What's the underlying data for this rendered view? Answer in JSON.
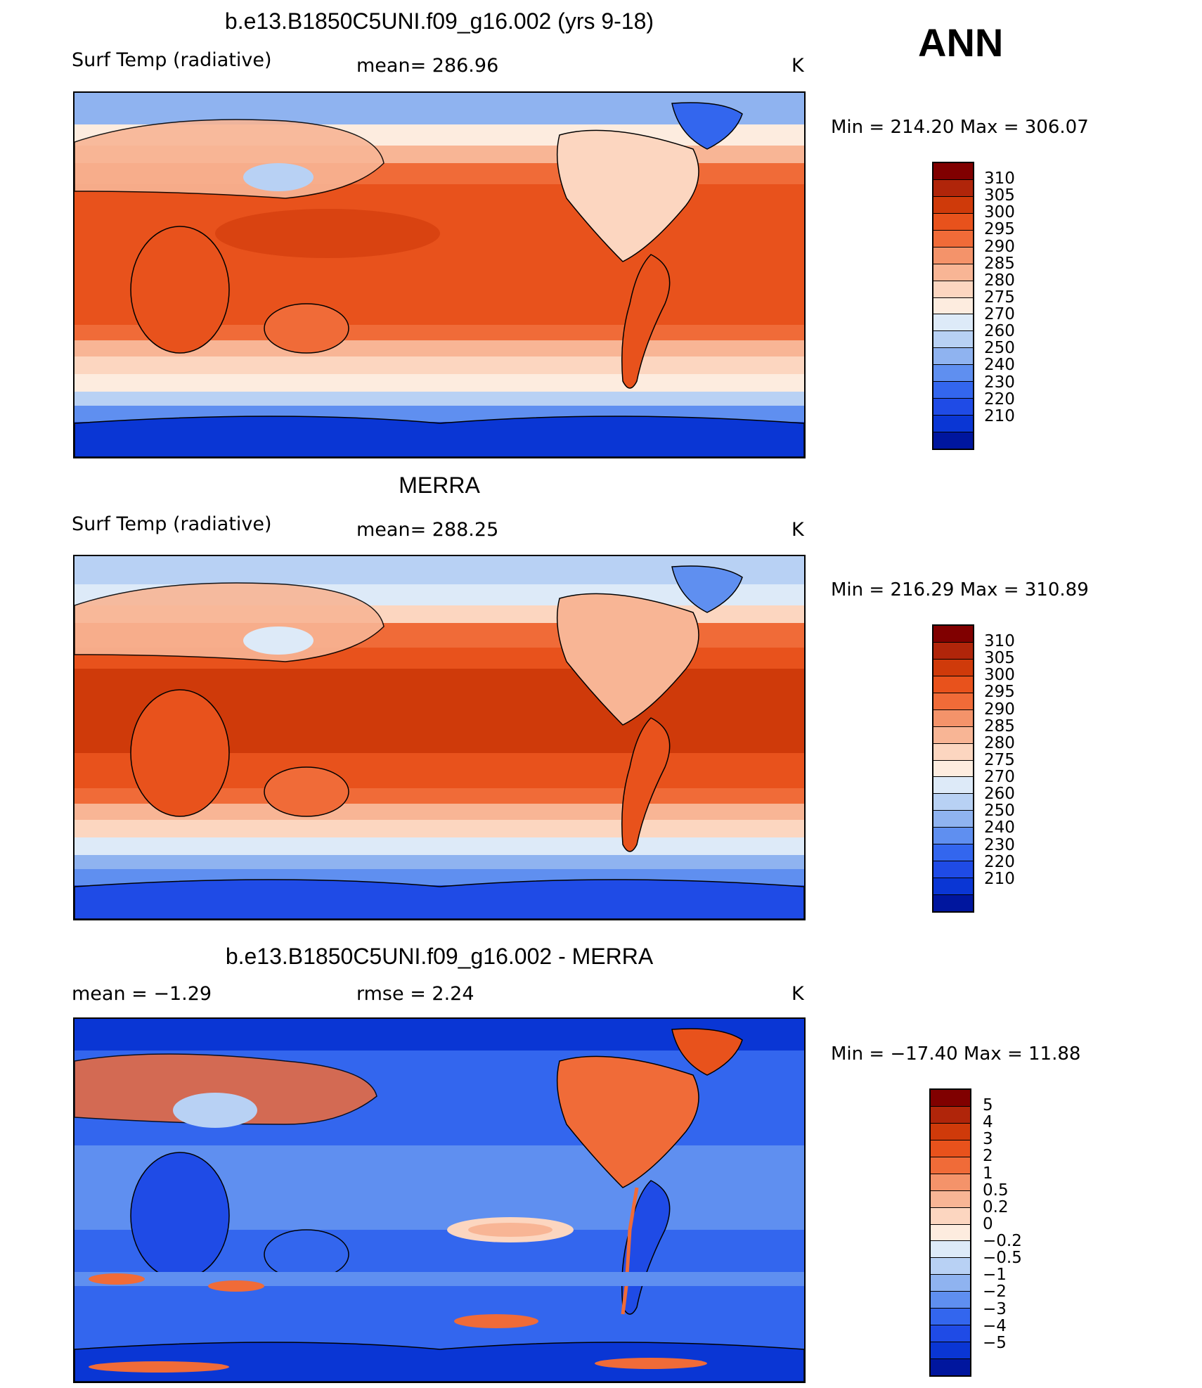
{
  "season": "ANN",
  "panels": [
    {
      "title": "b.e13.B1850C5UNI.f09_g16.002 (yrs 9-18)",
      "left_label": "Surf Temp (radiative)",
      "mid_label": "mean=  286.96",
      "units": "K",
      "minmax": "Min  =  214.20  Max  =  306.07",
      "field": "temperature",
      "stats": {
        "mean": 286.96,
        "min": 214.2,
        "max": 306.07
      }
    },
    {
      "title": "MERRA",
      "left_label": "Surf Temp (radiative)",
      "mid_label": "mean=  288.25",
      "units": "K",
      "minmax": "Min  =  216.29  Max  =  310.89",
      "field": "temperature",
      "stats": {
        "mean": 288.25,
        "min": 216.29,
        "max": 310.89
      }
    },
    {
      "title": "b.e13.B1850C5UNI.f09_g16.002 - MERRA",
      "left_label": "mean =   −1.29",
      "mid_label": "rmse =     2.24",
      "units": "K",
      "minmax": "Min  =  −17.40  Max  =    11.88",
      "field": "difference",
      "stats": {
        "mean": -1.29,
        "rmse": 2.24,
        "min": -17.4,
        "max": 11.88
      }
    }
  ],
  "colorbars": {
    "temperature": {
      "levels": [
        "310",
        "305",
        "300",
        "295",
        "290",
        "285",
        "280",
        "275",
        "270",
        "260",
        "250",
        "240",
        "230",
        "220",
        "210"
      ],
      "colors": [
        "#800000",
        "#b0250a",
        "#cf3a0a",
        "#e8521c",
        "#f06b38",
        "#f4936a",
        "#f8b595",
        "#fcd6c0",
        "#fdecdf",
        "#ddeaf8",
        "#b8d1f4",
        "#8fb3f0",
        "#5f8ff0",
        "#3366ee",
        "#1f4be6",
        "#0a36d4",
        "#00169e"
      ]
    },
    "difference": {
      "levels": [
        "5",
        "4",
        "3",
        "2",
        "1",
        "0.5",
        "0.2",
        "0",
        "−0.2",
        "−0.5",
        "−1",
        "−2",
        "−3",
        "−4",
        "−5"
      ],
      "colors": [
        "#800000",
        "#b0250a",
        "#cf3a0a",
        "#e8521c",
        "#f06b38",
        "#f4936a",
        "#f8b595",
        "#fcd6c0",
        "#fdecdf",
        "#ddeaf8",
        "#b8d1f4",
        "#8fb3f0",
        "#5f8ff0",
        "#3366ee",
        "#1f4be6",
        "#0a36d4",
        "#00169e"
      ]
    }
  }
}
